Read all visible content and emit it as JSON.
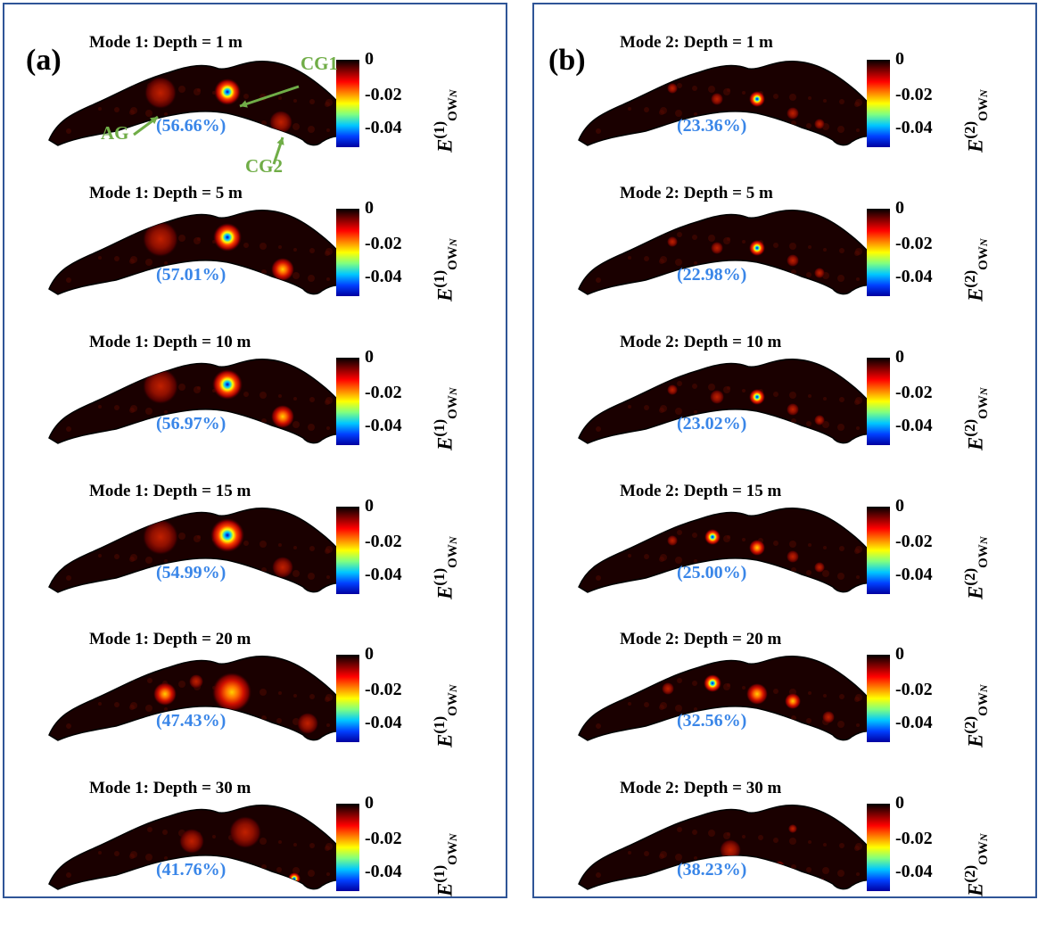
{
  "colors": {
    "frame": "#2f5597",
    "percent_text": "#3a86e8",
    "annotation": "#70ad47",
    "colormap": [
      "#0000a0",
      "#0040ff",
      "#00c8ff",
      "#80ff80",
      "#ffff00",
      "#ff8000",
      "#ff0000",
      "#800000",
      "#000000"
    ]
  },
  "chart_data": [
    {
      "type": "heatmap",
      "panel_label": "(a)",
      "mode": 1,
      "colorbar": {
        "ticks": [
          "0",
          "-0.02",
          "-0.04"
        ],
        "range": [
          -0.05,
          0
        ]
      },
      "colorbar_label": {
        "base": "E",
        "sup": "(1)",
        "sub": "OW",
        "sub2": "N"
      },
      "annotations": [
        "CG1",
        "AG",
        "CG2"
      ],
      "maps": [
        {
          "title": "Mode 1: Depth = 1 m",
          "depth_m": 1,
          "percent": "(56.66%)"
        },
        {
          "title": "Mode 1: Depth = 5 m",
          "depth_m": 5,
          "percent": "(57.01%)"
        },
        {
          "title": "Mode 1: Depth = 10 m",
          "depth_m": 10,
          "percent": "(56.97%)"
        },
        {
          "title": "Mode 1: Depth = 15 m",
          "depth_m": 15,
          "percent": "(54.99%)"
        },
        {
          "title": "Mode 1: Depth = 20 m",
          "depth_m": 20,
          "percent": "(47.43%)"
        },
        {
          "title": "Mode 1: Depth = 30 m",
          "depth_m": 30,
          "percent": "(41.76%)"
        }
      ]
    },
    {
      "type": "heatmap",
      "panel_label": "(b)",
      "mode": 2,
      "colorbar": {
        "ticks": [
          "0",
          "-0.02",
          "-0.04"
        ],
        "range": [
          -0.05,
          0
        ]
      },
      "colorbar_label": {
        "base": "E",
        "sup": "(2)",
        "sub": "OW",
        "sub2": "N"
      },
      "maps": [
        {
          "title": "Mode 2: Depth = 1 m",
          "depth_m": 1,
          "percent": "(23.36%)"
        },
        {
          "title": "Mode 2: Depth = 5 m",
          "depth_m": 5,
          "percent": "(22.98%)"
        },
        {
          "title": "Mode 2: Depth = 10 m",
          "depth_m": 10,
          "percent": "(23.02%)"
        },
        {
          "title": "Mode 2: Depth = 15 m",
          "depth_m": 15,
          "percent": "(25.00%)"
        },
        {
          "title": "Mode 2: Depth = 20 m",
          "depth_m": 20,
          "percent": "(32.56%)"
        },
        {
          "title": "Mode 2: Depth = 30 m",
          "depth_m": 30,
          "percent": "(38.23%)"
        }
      ]
    }
  ]
}
